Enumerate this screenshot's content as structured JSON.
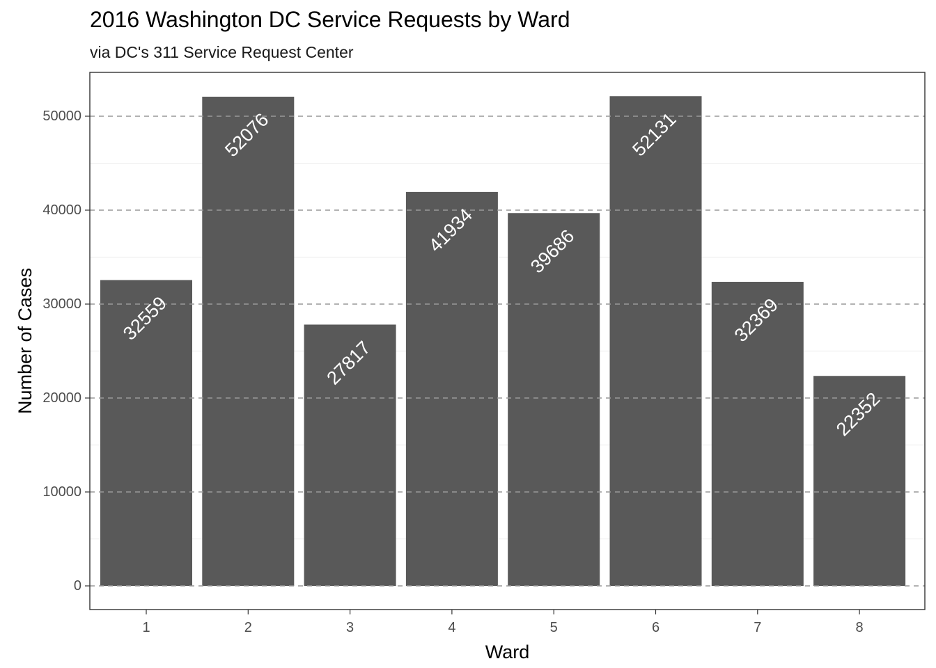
{
  "chart_data": {
    "type": "bar",
    "title": "2016 Washington DC Service Requests by Ward",
    "subtitle": "via DC's 311 Service Request Center",
    "xlabel": "Ward",
    "ylabel": "Number of Cases",
    "categories": [
      "1",
      "2",
      "3",
      "4",
      "5",
      "6",
      "7",
      "8"
    ],
    "values": [
      32559,
      52076,
      27817,
      41934,
      39686,
      52131,
      32369,
      22352
    ],
    "data_labels": [
      "32559",
      "52076",
      "27817",
      "41934",
      "39686",
      "52131",
      "32369",
      "22352"
    ],
    "ylim": [
      -2500,
      54600
    ],
    "yticks": [
      0,
      10000,
      20000,
      30000,
      40000,
      50000
    ],
    "ytick_labels": [
      "0",
      "10000",
      "20000",
      "30000",
      "40000",
      "50000"
    ],
    "bar_color": "#595959",
    "grid": "dashed major y gridlines",
    "legend": "none"
  }
}
